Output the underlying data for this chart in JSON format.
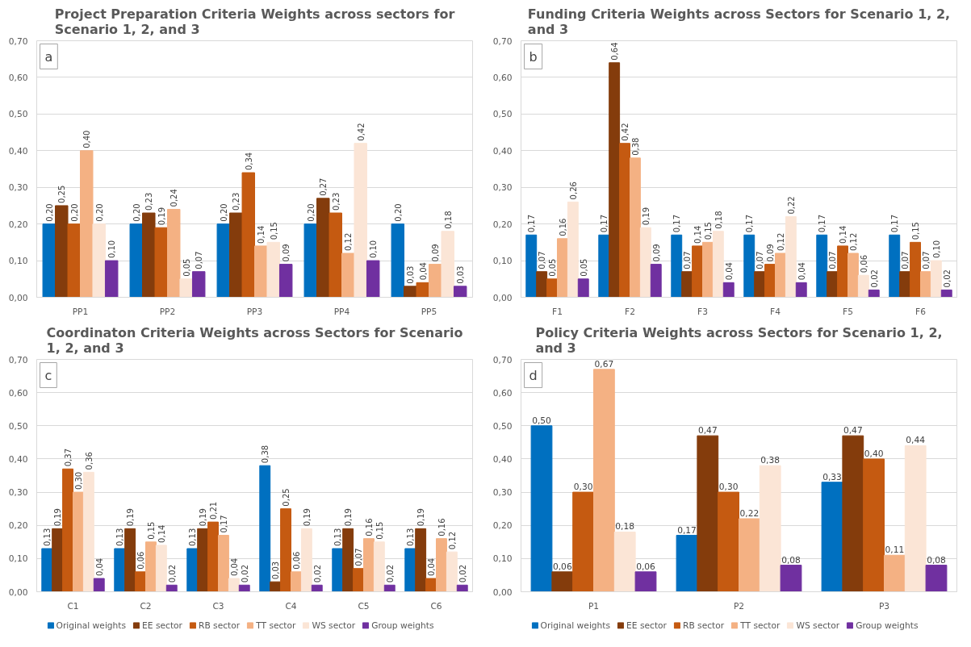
{
  "chart_data": [
    {
      "type": "bar",
      "title": "Project Preparation Criteria Weights across sectors for Scenario 1, 2, and 3",
      "annotations": [
        "a"
      ],
      "categories": [
        "PP1",
        "PP2",
        "PP3",
        "PP4",
        "PP5"
      ],
      "series": [
        {
          "color": "#0070c0",
          "values": [
            0.2,
            0.2,
            0.2,
            0.2,
            0.2
          ],
          "value_labels": [
            "0,20",
            "0,20",
            "0,20",
            "0,20",
            "0,20"
          ]
        },
        {
          "color": "#843c0c",
          "values": [
            0.25,
            0.23,
            0.23,
            0.27,
            0.03
          ],
          "value_labels": [
            "0,25",
            "0,23",
            "0,23",
            "0,27",
            "0,03"
          ]
        },
        {
          "color": "#c55a11",
          "values": [
            0.2,
            0.19,
            0.34,
            0.23,
            0.04
          ],
          "value_labels": [
            "0,20",
            "0,19",
            "0,34",
            "0,23",
            "0,04"
          ]
        },
        {
          "color": "#f4b183",
          "values": [
            0.4,
            0.24,
            0.14,
            0.12,
            0.09
          ],
          "value_labels": [
            "0,40",
            "0,24",
            "0,14",
            "0,12",
            "0,09"
          ]
        },
        {
          "color": "#fbe5d6",
          "values": [
            0.2,
            0.05,
            0.15,
            0.42,
            0.18
          ],
          "value_labels": [
            "0,20",
            "0,05",
            "0,15",
            "0,42",
            "0,18"
          ]
        },
        {
          "color": "#7030a0",
          "values": [
            0.1,
            0.07,
            0.09,
            0.1,
            0.03
          ],
          "value_labels": [
            "0,10",
            "0,07",
            "0,09",
            "0,10",
            "0,03"
          ]
        }
      ],
      "ylim": [
        0,
        0.7
      ],
      "yticks": [
        {
          "value": 0,
          "label": "0,00"
        },
        {
          "value": 0.1,
          "label": "0,10"
        },
        {
          "value": 0.2,
          "label": "0,20"
        },
        {
          "value": 0.3,
          "label": "0,30"
        },
        {
          "value": 0.4,
          "label": "0,40"
        },
        {
          "value": 0.5,
          "label": "0,50"
        },
        {
          "value": 0.6,
          "label": "0,60"
        },
        {
          "value": 0.7,
          "label": "0,70"
        }
      ],
      "grid": "y"
    },
    {
      "type": "bar",
      "title": "Funding Criteria Weights across Sectors for Scenario 1, 2, and 3",
      "annotations": [
        "b"
      ],
      "categories": [
        "F1",
        "F2",
        "F3",
        "F4",
        "F5",
        "F6"
      ],
      "series": [
        {
          "color": "#0070c0",
          "values": [
            0.17,
            0.17,
            0.17,
            0.17,
            0.17,
            0.17
          ],
          "value_labels": [
            "0,17",
            "0,17",
            "0,17",
            "0,17",
            "0,17",
            "0,17"
          ]
        },
        {
          "color": "#843c0c",
          "values": [
            0.07,
            0.64,
            0.07,
            0.07,
            0.07,
            0.07
          ],
          "value_labels": [
            "0,07",
            "0,64",
            "0,07",
            "0,07",
            "0,07",
            "0,07"
          ]
        },
        {
          "color": "#c55a11",
          "values": [
            0.05,
            0.42,
            0.14,
            0.09,
            0.14,
            0.15
          ],
          "value_labels": [
            "0,05",
            "0,42",
            "0,14",
            "0,09",
            "0,14",
            "0,15"
          ]
        },
        {
          "color": "#f4b183",
          "values": [
            0.16,
            0.38,
            0.15,
            0.12,
            0.12,
            0.07
          ],
          "value_labels": [
            "0,16",
            "0,38",
            "0,15",
            "0,12",
            "0,12",
            "0,07"
          ]
        },
        {
          "color": "#fbe5d6",
          "values": [
            0.26,
            0.19,
            0.18,
            0.22,
            0.06,
            0.1
          ],
          "value_labels": [
            "0,26",
            "0,19",
            "0,18",
            "0,22",
            "0,06",
            "0,10"
          ]
        },
        {
          "color": "#7030a0",
          "values": [
            0.05,
            0.09,
            0.04,
            0.04,
            0.02,
            0.02
          ],
          "value_labels": [
            "0,05",
            "0,09",
            "0,04",
            "0,04",
            "0,02",
            "0,02"
          ]
        }
      ],
      "ylim": [
        0,
        0.7
      ],
      "yticks": [
        {
          "value": 0,
          "label": "0,00"
        },
        {
          "value": 0.1,
          "label": "0,10"
        },
        {
          "value": 0.2,
          "label": "0,20"
        },
        {
          "value": 0.3,
          "label": "0,30"
        },
        {
          "value": 0.4,
          "label": "0,40"
        },
        {
          "value": 0.5,
          "label": "0,50"
        },
        {
          "value": 0.6,
          "label": "0,60"
        },
        {
          "value": 0.7,
          "label": "0,70"
        }
      ],
      "grid": "y"
    },
    {
      "type": "bar",
      "title": "Coordinaton Criteria Weights across Sectors for Scenario 1, 2, and 3",
      "annotations": [
        "c"
      ],
      "categories": [
        "C1",
        "C2",
        "C3",
        "C4",
        "C5",
        "C6"
      ],
      "series": [
        {
          "name": "Original weights",
          "color": "#0070c0",
          "values": [
            0.13,
            0.13,
            0.13,
            0.38,
            0.13,
            0.13
          ],
          "value_labels": [
            "0,13",
            "0,13",
            "0,13",
            "0,38",
            "0,13",
            "0,13"
          ]
        },
        {
          "name": "EE sector",
          "color": "#843c0c",
          "values": [
            0.19,
            0.19,
            0.19,
            0.03,
            0.19,
            0.19
          ],
          "value_labels": [
            "0,19",
            "0,19",
            "0,19",
            "0,03",
            "0,19",
            "0,19"
          ]
        },
        {
          "name": "RB sector",
          "color": "#c55a11",
          "values": [
            0.37,
            0.06,
            0.21,
            0.25,
            0.07,
            0.04
          ],
          "value_labels": [
            "0,37",
            "0,06",
            "0,21",
            "0,25",
            "0,07",
            "0,04"
          ]
        },
        {
          "name": "TT sector",
          "color": "#f4b183",
          "values": [
            0.3,
            0.15,
            0.17,
            0.06,
            0.16,
            0.16
          ],
          "value_labels": [
            "0,30",
            "0,15",
            "0,17",
            "0,06",
            "0,16",
            "0,16"
          ]
        },
        {
          "name": "WS sector",
          "color": "#fbe5d6",
          "values": [
            0.36,
            0.14,
            0.04,
            0.19,
            0.15,
            0.12
          ],
          "value_labels": [
            "0,36",
            "0,14",
            "0,04",
            "0,19",
            "0,15",
            "0,12"
          ]
        },
        {
          "name": "Group weights",
          "color": "#7030a0",
          "values": [
            0.04,
            0.02,
            0.02,
            0.02,
            0.02,
            0.02
          ],
          "value_labels": [
            "0,04",
            "0,02",
            "0,02",
            "0,02",
            "0,02",
            "0,02"
          ]
        }
      ],
      "ylim": [
        0,
        0.7
      ],
      "yticks": [
        {
          "value": 0,
          "label": "0,00"
        },
        {
          "value": 0.1,
          "label": "0,10"
        },
        {
          "value": 0.2,
          "label": "0,20"
        },
        {
          "value": 0.3,
          "label": "0,30"
        },
        {
          "value": 0.4,
          "label": "0,40"
        },
        {
          "value": 0.5,
          "label": "0,50"
        },
        {
          "value": 0.6,
          "label": "0,60"
        },
        {
          "value": 0.7,
          "label": "0,70"
        }
      ],
      "grid": "y",
      "legend": "bottom"
    },
    {
      "type": "bar",
      "title": "Policy Criteria Weights across Sectors for Scenario 1, 2, and 3",
      "annotations": [
        "d"
      ],
      "categories": [
        "P1",
        "P2",
        "P3"
      ],
      "series": [
        {
          "name": "Original weights",
          "color": "#0070c0",
          "values": [
            0.5,
            0.17,
            0.33
          ],
          "value_labels": [
            "0,50",
            "0,17",
            "0,33"
          ]
        },
        {
          "name": "EE sector",
          "color": "#843c0c",
          "values": [
            0.06,
            0.47,
            0.47
          ],
          "value_labels": [
            "0,06",
            "0,47",
            "0,47"
          ]
        },
        {
          "name": "RB sector",
          "color": "#c55a11",
          "values": [
            0.3,
            0.3,
            0.4
          ],
          "value_labels": [
            "0,30",
            "0,30",
            "0,40"
          ]
        },
        {
          "name": "TT sector",
          "color": "#f4b183",
          "values": [
            0.67,
            0.22,
            0.11
          ],
          "value_labels": [
            "0,67",
            "0,22",
            "0,11"
          ]
        },
        {
          "name": "WS sector",
          "color": "#fbe5d6",
          "values": [
            0.18,
            0.38,
            0.44
          ],
          "value_labels": [
            "0,18",
            "0,38",
            "0,44"
          ]
        },
        {
          "name": "Group weights",
          "color": "#7030a0",
          "values": [
            0.06,
            0.08,
            0.08
          ],
          "value_labels": [
            "0,06",
            "0,08",
            "0,08"
          ]
        }
      ],
      "ylim": [
        0,
        0.7
      ],
      "yticks": [
        {
          "value": 0,
          "label": "0,00"
        },
        {
          "value": 0.1,
          "label": "0,10"
        },
        {
          "value": 0.2,
          "label": "0,20"
        },
        {
          "value": 0.3,
          "label": "0,30"
        },
        {
          "value": 0.4,
          "label": "0,40"
        },
        {
          "value": 0.5,
          "label": "0,50"
        },
        {
          "value": 0.6,
          "label": "0,60"
        },
        {
          "value": 0.7,
          "label": "0,70"
        }
      ],
      "grid": "y",
      "legend": "bottom"
    }
  ]
}
